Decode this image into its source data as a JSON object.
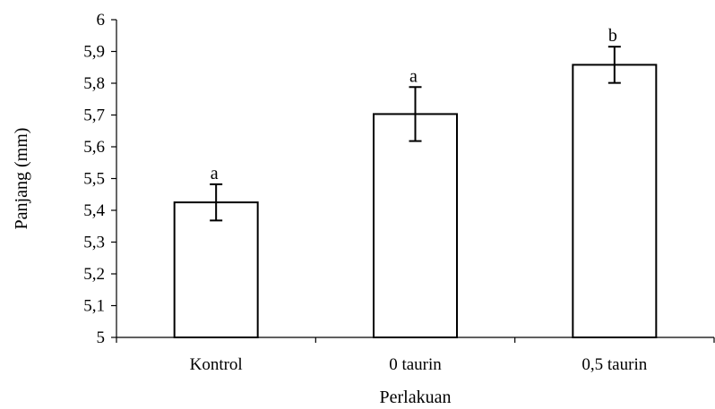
{
  "chart_data": {
    "type": "bar",
    "title": "",
    "xlabel": "Perlakuan",
    "ylabel": "Panjang (mm)",
    "ylim": [
      5,
      6
    ],
    "yticks": [
      "5",
      "5,1",
      "5,2",
      "5,3",
      "5,4",
      "5,5",
      "5,6",
      "5,7",
      "5,8",
      "5,9",
      "6"
    ],
    "categories": [
      "Kontrol",
      "0 taurin",
      "0,5 taurin"
    ],
    "values": [
      5.425,
      5.703,
      5.858
    ],
    "errors": [
      0.057,
      0.085,
      0.057
    ],
    "significance": [
      "a",
      "a",
      "b"
    ],
    "grid": false,
    "legend": "none",
    "colors": {
      "bar_fill": "#ffffff",
      "bar_stroke": "#000000"
    }
  }
}
